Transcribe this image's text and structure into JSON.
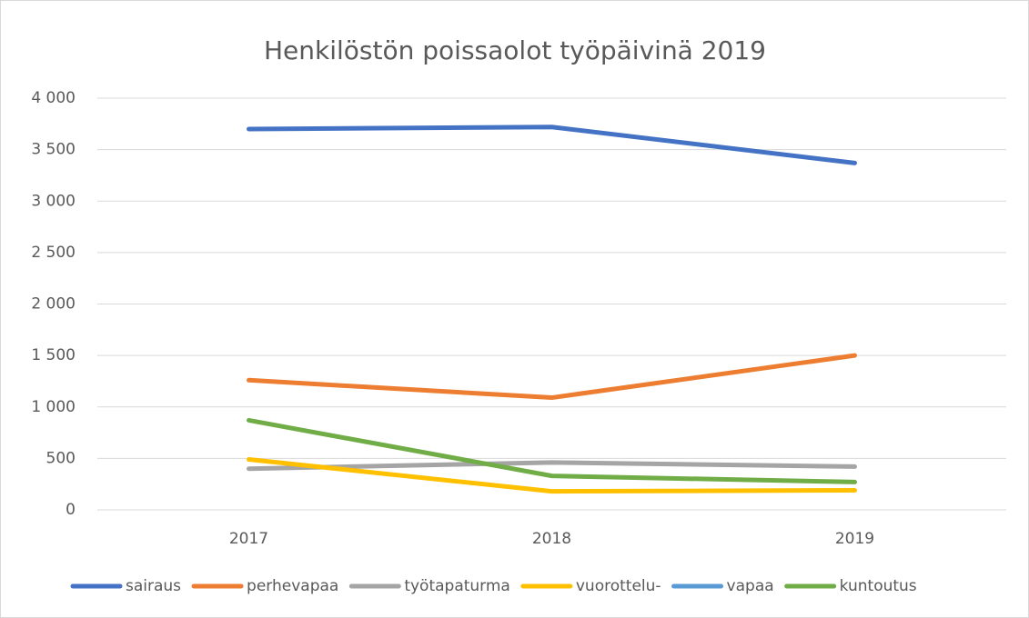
{
  "chart_data": {
    "type": "line",
    "title": "Henkilöstön poissaolot työpäivinä 2019",
    "categories": [
      "2017",
      "2018",
      "2019"
    ],
    "series": [
      {
        "name": "sairaus",
        "color": "#4472c4",
        "values": [
          3700,
          3720,
          3370
        ]
      },
      {
        "name": "perhevapaa",
        "color": "#ed7d31",
        "values": [
          1260,
          1090,
          1500
        ]
      },
      {
        "name": "työtapaturma",
        "color": "#a5a5a5",
        "values": [
          400,
          460,
          420
        ]
      },
      {
        "name": "vuorottelu-",
        "color": "#ffc000",
        "values": [
          490,
          180,
          190
        ]
      },
      {
        "name": "vapaa",
        "color": "#5b9bd5",
        "values": [
          null,
          null,
          null
        ]
      },
      {
        "name": "kuntoutus",
        "color": "#70ad47",
        "values": [
          870,
          330,
          270
        ]
      }
    ],
    "ylim": [
      0,
      4000
    ],
    "yticks": [
      0,
      500,
      {
        "value": 1000,
        "label": "1 000"
      },
      {
        "value": 1500,
        "label": "1 500"
      },
      {
        "value": 2000,
        "label": "2 000"
      },
      {
        "value": 2500,
        "label": "2 500"
      },
      {
        "value": 3000,
        "label": "3 000"
      },
      {
        "value": 3500,
        "label": "3 500"
      },
      {
        "value": 4000,
        "label": "4 000"
      }
    ],
    "grid": true,
    "legend": "bottom"
  }
}
